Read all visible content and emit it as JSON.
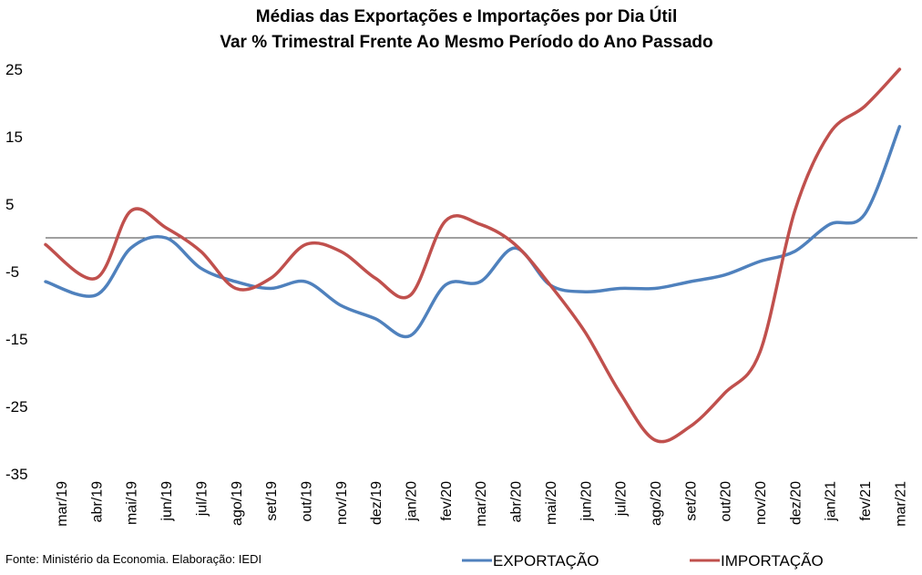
{
  "chart_data": {
    "type": "line",
    "title": "Médias das Exportações e Importações por Dia Útil",
    "subtitle": "Var % Trimestral Frente Ao Mesmo Período do Ano Passado",
    "categories": [
      "mar/19",
      "abr/19",
      "mai/19",
      "jun/19",
      "jul/19",
      "ago/19",
      "set/19",
      "out/19",
      "nov/19",
      "dez/19",
      "jan/20",
      "fev/20",
      "mar/20",
      "abr/20",
      "mai/20",
      "jun/20",
      "jul/20",
      "ago/20",
      "set/20",
      "out/20",
      "nov/20",
      "dez/20",
      "jan/21",
      "fev/21",
      "mar/21"
    ],
    "yticks": [
      25,
      15,
      5,
      -5,
      -15,
      -25,
      -35
    ],
    "ylim": [
      -35,
      25
    ],
    "zero_line": true,
    "series": [
      {
        "name": "EXPORTAÇÃO",
        "color": "#4F81BD",
        "values": [
          -6.5,
          -8.5,
          -1.5,
          0.0,
          -4.5,
          -6.5,
          -7.5,
          -6.5,
          -10.0,
          -12.0,
          -14.5,
          -7.0,
          -6.5,
          -1.5,
          -7.0,
          -8.0,
          -7.5,
          -7.5,
          -6.5,
          -5.5,
          -3.5,
          -2.0,
          2.0,
          3.5,
          16.5
        ]
      },
      {
        "name": "IMPORTAÇÃO",
        "color": "#C0504D",
        "values": [
          -1.0,
          -6.0,
          4.0,
          1.5,
          -2.0,
          -7.5,
          -6.0,
          -1.0,
          -2.0,
          -6.0,
          -8.5,
          2.5,
          2.0,
          -1.0,
          -7.0,
          -14.0,
          -23.0,
          -30.0,
          -28.0,
          -23.0,
          -17.0,
          4.0,
          15.5,
          19.5,
          25.0
        ]
      }
    ],
    "legend_position": "bottom-right"
  },
  "source_text": "Fonte: Ministério da Economia. Elaboração: IEDI"
}
